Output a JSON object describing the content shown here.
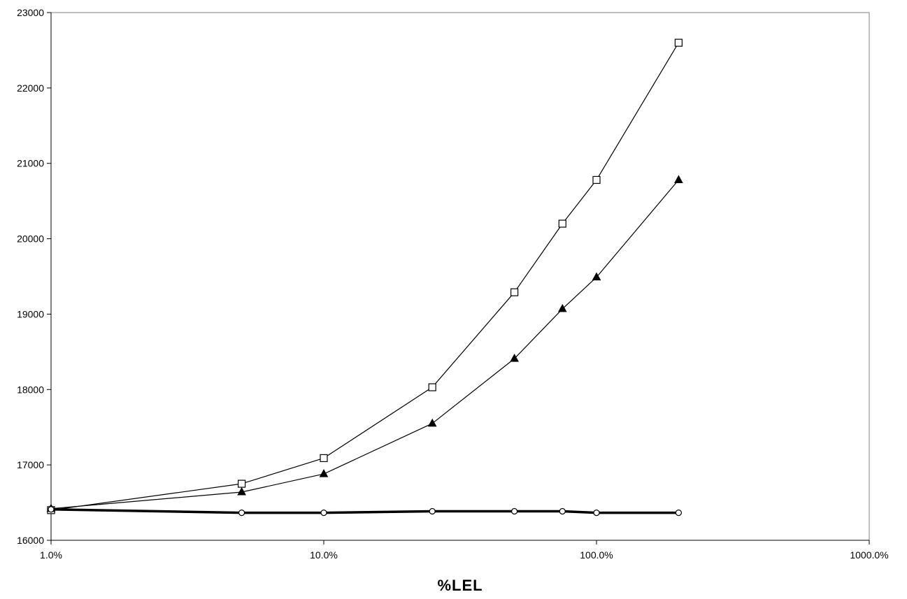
{
  "chart_data": {
    "type": "line",
    "xlabel": "%LEL",
    "ylabel": "",
    "title": "",
    "x_scale": "log",
    "xlim": [
      1,
      1000
    ],
    "ylim": [
      16000,
      23000
    ],
    "x_ticks": [
      1,
      10,
      100,
      1000
    ],
    "x_tick_labels": [
      "1.0%",
      "10.0%",
      "100.0%",
      "1000.0%"
    ],
    "y_ticks": [
      16000,
      17000,
      18000,
      19000,
      20000,
      21000,
      22000,
      23000
    ],
    "y_tick_labels": [
      "16000",
      "17000",
      "18000",
      "19000",
      "20000",
      "21000",
      "22000",
      "23000"
    ],
    "grid": false,
    "series": [
      {
        "marker": "square-open",
        "line": "thin",
        "x": [
          1,
          5,
          10,
          25,
          50,
          75,
          100,
          200
        ],
        "y": [
          16400,
          16750,
          17090,
          18030,
          19290,
          20200,
          20780,
          22600
        ]
      },
      {
        "marker": "triangle-filled",
        "line": "thin",
        "x": [
          1,
          5,
          10,
          25,
          50,
          75,
          100,
          200
        ],
        "y": [
          16420,
          16640,
          16880,
          17550,
          18410,
          19070,
          19490,
          20780
        ]
      },
      {
        "marker": "circle-open",
        "line": "thick",
        "x": [
          1,
          5,
          10,
          25,
          50,
          75,
          100,
          200
        ],
        "y": [
          16410,
          16365,
          16365,
          16385,
          16385,
          16385,
          16365,
          16365
        ]
      }
    ]
  }
}
